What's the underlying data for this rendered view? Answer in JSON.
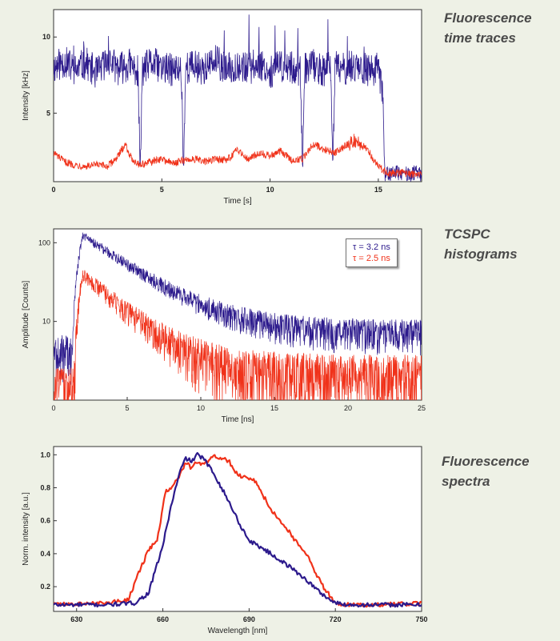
{
  "colors": {
    "series_1": "#2c1a8c",
    "series_2": "#f0321a",
    "background": "#eef1e6",
    "plot_bg": "#ffffff"
  },
  "chart_data": [
    {
      "type": "line",
      "caption": "Fluorescence\ntime traces",
      "xlabel": "Time [s]",
      "ylabel": "Intensity [kHz]",
      "xlim": [
        0,
        17
      ],
      "ylim": [
        0.5,
        11.8
      ],
      "xticks": [
        0,
        5,
        10,
        15
      ],
      "yticks": [
        5,
        10
      ],
      "series": [
        {
          "x": [
            0,
            0.5,
            1,
            1.5,
            2,
            2.5,
            3,
            3.5,
            3.9,
            4.0,
            4.1,
            4.5,
            5,
            5.5,
            5.9,
            6.0,
            6.1,
            6.5,
            7,
            7.5,
            8,
            8.5,
            9,
            9.5,
            10,
            10.5,
            11,
            11.4,
            11.5,
            11.6,
            12,
            12.5,
            12.8,
            12.9,
            13.0,
            13.5,
            14,
            14.5,
            15,
            15.2,
            15.3,
            15.8,
            16,
            16.5,
            16.7,
            17
          ],
          "values": [
            8.0,
            8.4,
            7.8,
            8.3,
            7.6,
            8.5,
            7.9,
            8.2,
            7.7,
            1.0,
            7.8,
            8.3,
            8.0,
            7.8,
            7.9,
            1.2,
            8.0,
            8.1,
            7.9,
            8.4,
            7.8,
            8.2,
            7.9,
            8.3,
            7.7,
            8.1,
            8.0,
            7.8,
            1.0,
            7.9,
            8.2,
            7.7,
            8.1,
            1.5,
            8.0,
            7.9,
            8.2,
            7.8,
            7.9,
            6.5,
            1.0,
            1.1,
            1.0,
            1.0,
            1.1,
            1.0
          ]
        },
        {
          "x": [
            0,
            0.5,
            1,
            1.5,
            2,
            2.5,
            3,
            3.3,
            3.6,
            4,
            4.5,
            5,
            5.5,
            6,
            6.5,
            7,
            7.5,
            8,
            8.5,
            9,
            9.5,
            10,
            10.5,
            11,
            11.5,
            12,
            12.5,
            13,
            13.5,
            14,
            14.5,
            15,
            15.5,
            16,
            16.5,
            17
          ],
          "values": [
            2.4,
            1.8,
            1.6,
            1.5,
            1.6,
            1.5,
            2.2,
            3.0,
            2.0,
            1.6,
            1.8,
            2.0,
            1.7,
            1.9,
            2.0,
            1.8,
            2.0,
            1.9,
            2.6,
            2.0,
            2.4,
            2.2,
            2.5,
            1.9,
            2.0,
            3.0,
            2.6,
            2.4,
            2.9,
            3.2,
            2.6,
            1.5,
            1.0,
            1.1,
            1.0,
            1.0
          ]
        }
      ]
    },
    {
      "type": "line",
      "caption": "TCSPC\nhistograms",
      "xlabel": "Time [ns]",
      "ylabel": "Amplitude [Counts]",
      "xlim": [
        0,
        25
      ],
      "ylim": [
        1,
        150
      ],
      "yscale": "log",
      "xticks": [
        0,
        5,
        10,
        15,
        20,
        25
      ],
      "yticks": [
        10,
        100
      ],
      "legend_position": "top-right",
      "series": [
        {
          "name": "τ = 3.2 ns",
          "offset": 1.3,
          "peak_time": 2.0,
          "peak": 125,
          "tau": 3.2,
          "background": 7
        },
        {
          "name": "τ = 2.5 ns",
          "offset": 1.4,
          "peak_time": 2.0,
          "peak": 40,
          "tau": 2.5,
          "background": 2
        }
      ]
    },
    {
      "type": "line",
      "caption": "Fluorescence\nspectra",
      "xlabel": "Wavelength [nm]",
      "ylabel": "Norm. intensity [a.u.]",
      "xlim": [
        622,
        750
      ],
      "ylim": [
        0.05,
        1.05
      ],
      "xticks": [
        630,
        660,
        690,
        720,
        750
      ],
      "yticks": [
        0.2,
        0.4,
        0.6,
        0.8,
        1.0
      ],
      "series": [
        {
          "x": [
            622,
            640,
            650,
            655,
            660,
            663,
            666,
            668,
            670,
            672,
            674,
            676,
            678,
            681,
            684,
            687,
            690,
            695,
            700,
            705,
            710,
            715,
            720,
            725,
            735,
            750
          ],
          "values": [
            0.09,
            0.09,
            0.1,
            0.16,
            0.45,
            0.7,
            0.9,
            0.98,
            0.96,
            1.0,
            0.98,
            0.93,
            0.88,
            0.78,
            0.68,
            0.57,
            0.48,
            0.43,
            0.37,
            0.31,
            0.24,
            0.16,
            0.1,
            0.09,
            0.09,
            0.09
          ]
        },
        {
          "x": [
            622,
            640,
            648,
            652,
            655,
            658,
            661,
            664,
            666,
            668,
            670,
            672,
            674,
            676,
            678,
            680,
            683,
            686,
            689,
            692,
            695,
            698,
            702,
            706,
            710,
            715,
            720,
            725,
            735,
            750
          ],
          "values": [
            0.09,
            0.1,
            0.12,
            0.3,
            0.42,
            0.48,
            0.78,
            0.82,
            0.88,
            0.95,
            0.92,
            0.96,
            0.94,
            0.97,
            0.99,
            0.98,
            0.96,
            0.88,
            0.86,
            0.84,
            0.75,
            0.66,
            0.58,
            0.48,
            0.4,
            0.22,
            0.1,
            0.09,
            0.09,
            0.1
          ]
        }
      ]
    }
  ]
}
